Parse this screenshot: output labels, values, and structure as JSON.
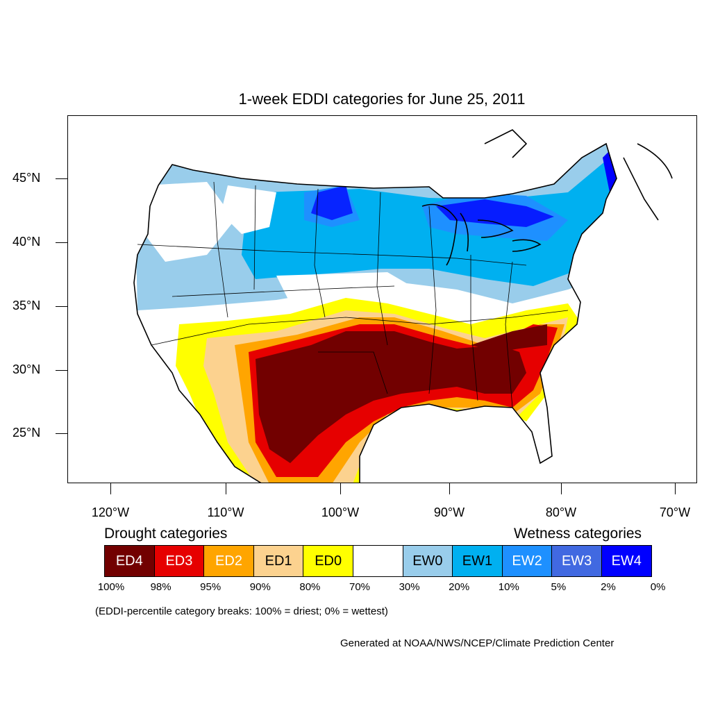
{
  "title": "1-week EDDI categories for June 25, 2011",
  "lat_labels": [
    "45°N",
    "40°N",
    "35°N",
    "30°N",
    "25°N"
  ],
  "lon_labels": [
    "120°W",
    "110°W",
    "100°W",
    "90°W",
    "80°W",
    "70°W"
  ],
  "legend": {
    "drought_heading": "Drought categories",
    "wetness_heading": "Wetness categories",
    "categories": [
      {
        "label": "ED4",
        "color": "#720000",
        "text_color": "#ffffff"
      },
      {
        "label": "ED3",
        "color": "#e60000",
        "text_color": "#ffffff"
      },
      {
        "label": "ED2",
        "color": "#ffa500",
        "text_color": "#ffffff"
      },
      {
        "label": "ED1",
        "color": "#fcd28f",
        "text_color": "#000000"
      },
      {
        "label": "ED0",
        "color": "#ffff00",
        "text_color": "#000000"
      },
      {
        "label": "",
        "color": "#ffffff",
        "text_color": "#000000"
      },
      {
        "label": "EW0",
        "color": "#99cdeb",
        "text_color": "#000000"
      },
      {
        "label": "EW1",
        "color": "#00b0f0",
        "text_color": "#000000"
      },
      {
        "label": "EW2",
        "color": "#1e90ff",
        "text_color": "#ffffff"
      },
      {
        "label": "EW3",
        "color": "#4169e1",
        "text_color": "#ffffff"
      },
      {
        "label": "EW4",
        "color": "#0000ff",
        "text_color": "#ffffff"
      }
    ],
    "percent_breaks": [
      "100%",
      "98%",
      "95%",
      "90%",
      "80%",
      "70%",
      "30%",
      "20%",
      "10%",
      "5%",
      "2%",
      "0%"
    ]
  },
  "note": "(EDDI-percentile category breaks: 100% = driest; 0% = wettest)",
  "credit": "Generated at NOAA/NWS/NCEP/Climate Prediction Center"
}
